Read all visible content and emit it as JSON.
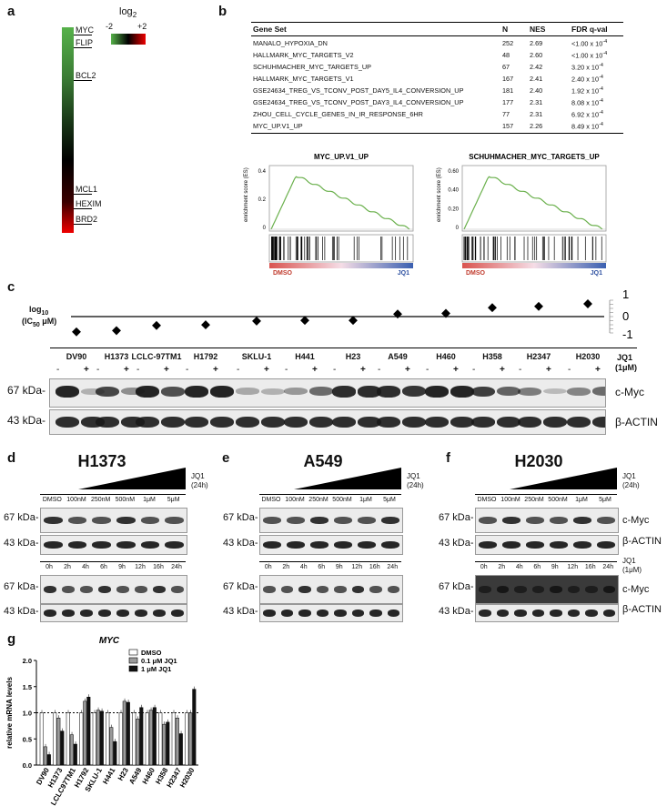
{
  "panels": {
    "a": "a",
    "b": "b",
    "c": "c",
    "d": "d",
    "e": "e",
    "f": "f",
    "g": "g"
  },
  "panel_a": {
    "scale_title": "log",
    "scale_sub": "2",
    "scale_min": "-2",
    "scale_max": "+2",
    "genes": [
      "MYC",
      "FLIP",
      "BCL2",
      "MCL1",
      "HEXIM",
      "BRD2"
    ]
  },
  "panel_b": {
    "headers": [
      "Gene Set",
      "N",
      "NES",
      "FDR q-val"
    ],
    "rows": [
      {
        "set": "MANALO_HYPOXIA_DN",
        "n": "252",
        "nes": "2.69",
        "fdr": "<1.00 x 10",
        "exp": "-4"
      },
      {
        "set": "HALLMARK_MYC_TARGETS_V2",
        "n": "48",
        "nes": "2.60",
        "fdr": "<1.00 x 10",
        "exp": "-4"
      },
      {
        "set": "SCHUHMACHER_MYC_TARGETS_UP",
        "n": "67",
        "nes": "2.42",
        "fdr": "3.20 x 10",
        "exp": "-4"
      },
      {
        "set": "HALLMARK_MYC_TARGETS_V1",
        "n": "167",
        "nes": "2.41",
        "fdr": "2.40 x 10",
        "exp": "-4"
      },
      {
        "set": "GSE24634_TREG_VS_TCONV_POST_DAY5_IL4_CONVERSION_UP",
        "n": "181",
        "nes": "2.40",
        "fdr": "1.92 x 10",
        "exp": "-4"
      },
      {
        "set": "GSE24634_TREG_VS_TCONV_POST_DAY3_IL4_CONVERSION_UP",
        "n": "177",
        "nes": "2.31",
        "fdr": "8.08 x 10",
        "exp": "-4"
      },
      {
        "set": "ZHOU_CELL_CYCLE_GENES_IN_IR_RESPONSE_6HR",
        "n": "77",
        "nes": "2.31",
        "fdr": "6.92 x 10",
        "exp": "-4"
      },
      {
        "set": "MYC_UP.V1_UP",
        "n": "157",
        "nes": "2.26",
        "fdr": "8.49 x 10",
        "exp": "-4"
      }
    ],
    "gsea": [
      {
        "title": "MYC_UP.V1_UP",
        "ylabel": "enrichment score (ES)",
        "yticks": [
          "0.4",
          "0.2",
          "0"
        ],
        "ymax": 0.45,
        "left": "DMSO",
        "right": "JQ1"
      },
      {
        "title": "SCHUHMACHER_MYC_TARGETS_UP",
        "ylabel": "enrichment score (ES)",
        "yticks": [
          "0.60",
          "0.40",
          "0.20",
          "0"
        ],
        "ymax": 0.62,
        "left": "DMSO",
        "right": "JQ1"
      }
    ]
  },
  "panel_c": {
    "ylabel": "log",
    "ylabel_sub": "10",
    "ylabel2": "(IC",
    "ylabel2_sub": "50",
    "ylabel2_end": " μM)",
    "axis_ticks": [
      "1",
      "0",
      "-1"
    ],
    "cell_lines": [
      "DV90",
      "H1373",
      "LCLC-97TM1",
      "H1792",
      "SKLU-1",
      "H441",
      "H23",
      "A549",
      "H460",
      "H358",
      "H2347",
      "H2030"
    ],
    "log_ic50": [
      -1.2,
      -1.1,
      -0.7,
      -0.65,
      -0.35,
      -0.3,
      -0.3,
      0.2,
      0.25,
      0.7,
      0.8,
      1.0
    ],
    "treatment_label": "JQ1",
    "treatment_dose": "(1μM)",
    "minus": "-",
    "plus": "+",
    "marker1": "67 kDa-",
    "marker2": "43 kDa-",
    "protein1": "c-Myc",
    "protein2": "β-ACTIN"
  },
  "panel_d": {
    "title": "H1373",
    "treat": "JQ1",
    "treat_time": "(24h)",
    "doses": [
      "DMSO",
      "100nM",
      "250nM",
      "500nM",
      "1μM",
      "5μM"
    ],
    "times": [
      "0h",
      "2h",
      "4h",
      "6h",
      "9h",
      "12h",
      "16h",
      "24h"
    ],
    "marker1": "67 kDa-",
    "marker2": "43 kDa-"
  },
  "panel_e": {
    "title": "A549",
    "treat": "JQ1",
    "treat_time": "(24h)",
    "doses": [
      "DMSO",
      "100nM",
      "250nM",
      "500nM",
      "1μM",
      "5μM"
    ],
    "times": [
      "0h",
      "2h",
      "4h",
      "6h",
      "9h",
      "12h",
      "16h",
      "24h"
    ],
    "marker1": "67 kDa-",
    "marker2": "43 kDa-"
  },
  "panel_f": {
    "title": "H2030",
    "treat": "JQ1",
    "treat_time": "(24h)",
    "treat2": "JQ1",
    "treat2_dose": "(1μM)",
    "doses": [
      "DMSO",
      "100nM",
      "250nM",
      "500nM",
      "1μM",
      "5μM"
    ],
    "times": [
      "0h",
      "2h",
      "4h",
      "6h",
      "9h",
      "12h",
      "16h",
      "24h"
    ],
    "marker1": "67 kDa-",
    "marker2": "43 kDa-",
    "protein1": "c-Myc",
    "protein2": "β-ACTIN"
  },
  "chart_data": {
    "type": "bar",
    "title": "MYC",
    "xlabel": "",
    "ylabel": "relative mRNA levels",
    "ylim": [
      0,
      2.0
    ],
    "yticks": [
      "0.0",
      "0.5",
      "1.0",
      "1.5",
      "2.0"
    ],
    "reference_line": 1.0,
    "legend": "top-right",
    "categories": [
      "DV90",
      "H1373",
      "LCLC97TM1",
      "H1792",
      "SKLU-1",
      "H441",
      "H23",
      "A549",
      "H460",
      "H358",
      "H2347",
      "H2030"
    ],
    "series": [
      {
        "name": "DMSO",
        "values": [
          1.0,
          1.0,
          1.0,
          1.0,
          1.0,
          1.0,
          1.0,
          1.0,
          1.0,
          1.0,
          1.0,
          1.0
        ],
        "color": "#ffffff"
      },
      {
        "name": "0.1 μM JQ1",
        "values": [
          0.35,
          0.9,
          0.58,
          1.22,
          1.05,
          0.72,
          1.22,
          0.88,
          1.05,
          0.78,
          0.9,
          1.0
        ],
        "color": "#9a9a9a"
      },
      {
        "name": "1 μM JQ1",
        "values": [
          0.2,
          0.65,
          0.4,
          1.3,
          1.03,
          0.45,
          1.2,
          1.1,
          1.1,
          0.82,
          0.6,
          1.45
        ],
        "color": "#111111"
      }
    ]
  }
}
